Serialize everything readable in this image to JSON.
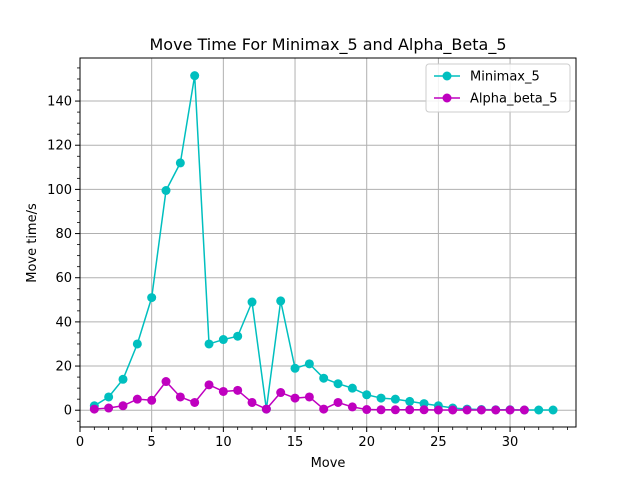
{
  "chart_data": {
    "type": "line",
    "title": "Move Time For Minimax_5 and Alpha_Beta_5",
    "xlabel": "Move",
    "ylabel": "Move time/s",
    "xlim": [
      0,
      34.6
    ],
    "ylim": [
      -7.6,
      159.5
    ],
    "xticks": [
      0,
      5,
      10,
      15,
      20,
      25,
      30
    ],
    "yticks": [
      0,
      20,
      40,
      60,
      80,
      100,
      120,
      140
    ],
    "grid": true,
    "legend_position": "top-right",
    "series": [
      {
        "name": "Minimax_5",
        "color": "#00bfbf",
        "x": [
          1,
          2,
          3,
          4,
          5,
          6,
          7,
          8,
          9,
          10,
          11,
          12,
          13,
          14,
          15,
          16,
          17,
          18,
          19,
          20,
          21,
          22,
          23,
          24,
          25,
          26,
          27,
          28,
          29,
          30,
          31,
          32,
          33
        ],
        "y": [
          2,
          6,
          14,
          30,
          51,
          99.5,
          112,
          151.5,
          30,
          32,
          33.5,
          49,
          0.5,
          49.5,
          19,
          21,
          14.5,
          12,
          10,
          7,
          5.5,
          5,
          4,
          3,
          2,
          1,
          0.5,
          0.3,
          0.2,
          0.2,
          0.1,
          0.1,
          0.1
        ]
      },
      {
        "name": "Alpha_beta_5",
        "color": "#bf00bf",
        "x": [
          1,
          2,
          3,
          4,
          5,
          6,
          7,
          8,
          9,
          10,
          11,
          12,
          13,
          14,
          15,
          16,
          17,
          18,
          19,
          20,
          21,
          22,
          23,
          24,
          25,
          26,
          27,
          28,
          29,
          30,
          31
        ],
        "y": [
          0.5,
          1,
          2,
          5,
          4.5,
          13,
          6,
          3.5,
          11.5,
          8.5,
          9,
          3.5,
          0.5,
          8,
          5.5,
          6,
          0.5,
          3.5,
          1.5,
          0.3,
          0.2,
          0.2,
          0.2,
          0.2,
          0.1,
          0.1,
          0.1,
          0.1,
          0.1,
          0.1,
          0.1
        ]
      }
    ]
  }
}
